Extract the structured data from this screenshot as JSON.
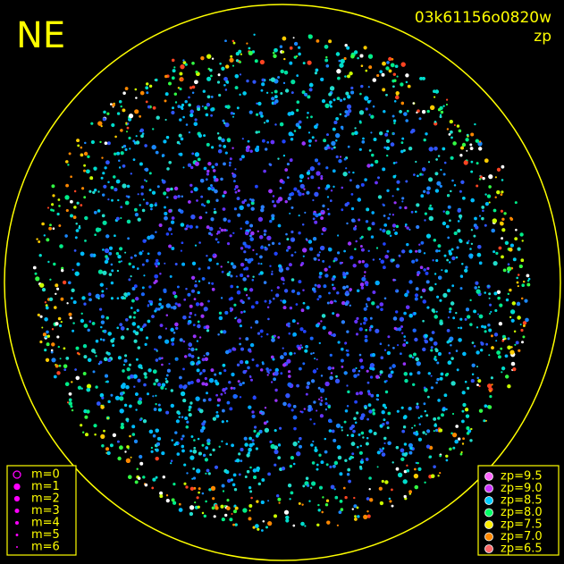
{
  "header": {
    "corner_label": "NE",
    "image_id": "03k61156o0820w",
    "mode": "zp"
  },
  "legend_magnitude": {
    "color": "#ff00ff",
    "items": [
      "m=0",
      "m=1",
      "m=2",
      "m=3",
      "m=4",
      "m=5",
      "m=6"
    ]
  },
  "legend_zp": {
    "items": [
      {
        "label": "zp=9.5",
        "color": "#ff66ff"
      },
      {
        "label": "zp=9.0",
        "color": "#cc33ff"
      },
      {
        "label": "zp=8.5",
        "color": "#00ccff"
      },
      {
        "label": "zp=8.0",
        "color": "#00ff66"
      },
      {
        "label": "zp=7.5",
        "color": "#ffee00"
      },
      {
        "label": "zp=7.0",
        "color": "#ff8800"
      },
      {
        "label": "zp=6.5",
        "color": "#ff6666"
      }
    ]
  }
}
